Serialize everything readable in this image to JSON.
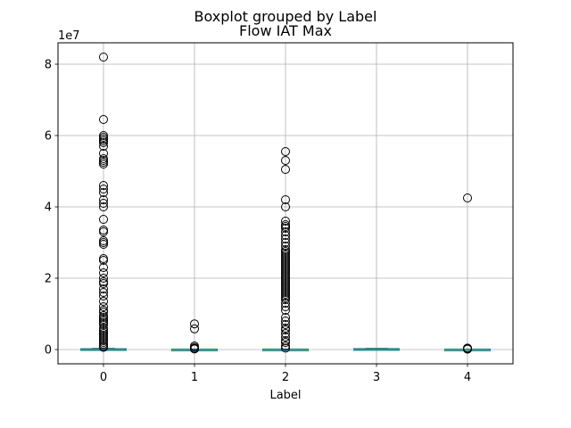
{
  "chart_data": {
    "type": "boxplot",
    "suptitle": "Boxplot grouped by Label",
    "title": "Flow IAT Max",
    "xlabel": "Label",
    "ylabel": "",
    "y_multiplier_label": "1e7",
    "categories": [
      "0",
      "1",
      "2",
      "3",
      "4"
    ],
    "xlim": [
      -0.5,
      4.5
    ],
    "ylim": [
      -4000000,
      86000000
    ],
    "y_ticks": [
      0,
      20000000,
      40000000,
      60000000,
      80000000
    ],
    "y_tick_labels": [
      "0",
      "2",
      "4",
      "6",
      "8"
    ],
    "grid": true,
    "box_color": "#1f77b4",
    "median_color": "#2ca02c",
    "boxes": [
      {
        "label": "0",
        "q1": 0,
        "median": 30000,
        "q3": 120000,
        "whisker_low": 0,
        "whisker_high": 300000,
        "outliers": [
          82000000,
          64500000,
          60000000,
          59500000,
          59000000,
          58500000,
          58000000,
          57000000,
          55000000,
          53500000,
          53000000,
          52500000,
          52000000,
          46000000,
          45000000,
          44000000,
          42000000,
          41000000,
          40000000,
          36500000,
          33500000,
          33000000,
          30500000,
          30000000,
          29500000,
          25500000,
          25000000,
          23000000,
          21500000,
          20000000,
          19000000,
          18500000,
          17000000,
          16000000,
          15000000,
          13500000,
          12000000,
          11000000,
          10500000,
          9500000,
          9000000,
          8500000,
          8000000,
          7500000,
          7000000,
          6000000,
          5500000,
          5000000,
          4500000,
          4000000,
          3500000,
          3000000,
          2500000,
          2000000,
          1500000,
          1000000,
          600000
        ]
      },
      {
        "label": "1",
        "q1": 0,
        "median": 5000,
        "q3": 20000,
        "whisker_low": 0,
        "whisker_high": 50000,
        "outliers": [
          7200000,
          5800000,
          1000000,
          600000,
          300000,
          150000
        ]
      },
      {
        "label": "2",
        "q1": 0,
        "median": 5000,
        "q3": 30000,
        "whisker_low": 0,
        "whisker_high": 70000,
        "outliers": [
          55500000,
          53000000,
          50500000,
          42000000,
          40000000,
          36000000,
          35000000,
          34500000,
          34000000,
          33000000,
          32000000,
          31000000,
          30000000,
          29000000,
          28000000,
          27500000,
          27000000,
          26500000,
          26000000,
          25500000,
          25000000,
          24500000,
          24000000,
          23500000,
          23000000,
          22500000,
          22000000,
          21500000,
          21000000,
          20500000,
          20000000,
          19500000,
          19000000,
          18500000,
          18000000,
          17500000,
          17000000,
          16500000,
          16000000,
          15500000,
          15000000,
          14500000,
          14000000,
          13000000,
          12000000,
          11000000,
          9000000,
          8000000,
          7000000,
          6000000,
          5500000,
          4500000,
          3500000,
          2500000,
          2000000,
          1000000,
          400000
        ]
      },
      {
        "label": "3",
        "q1": 0,
        "median": 50000,
        "q3": 150000,
        "whisker_low": 0,
        "whisker_high": 300000,
        "outliers": []
      },
      {
        "label": "4",
        "q1": 0,
        "median": 5000,
        "q3": 20000,
        "whisker_low": 0,
        "whisker_high": 40000,
        "outliers": [
          42500000,
          400000,
          250000,
          100000
        ]
      }
    ]
  }
}
